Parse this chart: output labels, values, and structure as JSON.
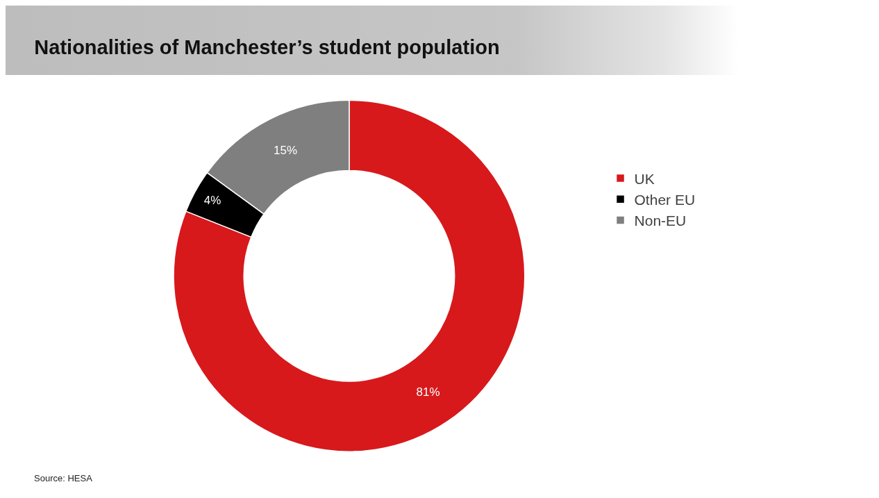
{
  "chart_data": {
    "type": "donut",
    "title": "Nationalities of Manchester’s student population",
    "categories": [
      "UK",
      "Other EU",
      "Non-EU"
    ],
    "values": [
      81,
      4,
      15
    ],
    "value_labels": [
      "81%",
      "4%",
      "15%"
    ],
    "colors": [
      "#d7191c",
      "#000000",
      "#7f7f7f"
    ],
    "legend": "right",
    "annotations": [
      "Source: HESA"
    ]
  }
}
